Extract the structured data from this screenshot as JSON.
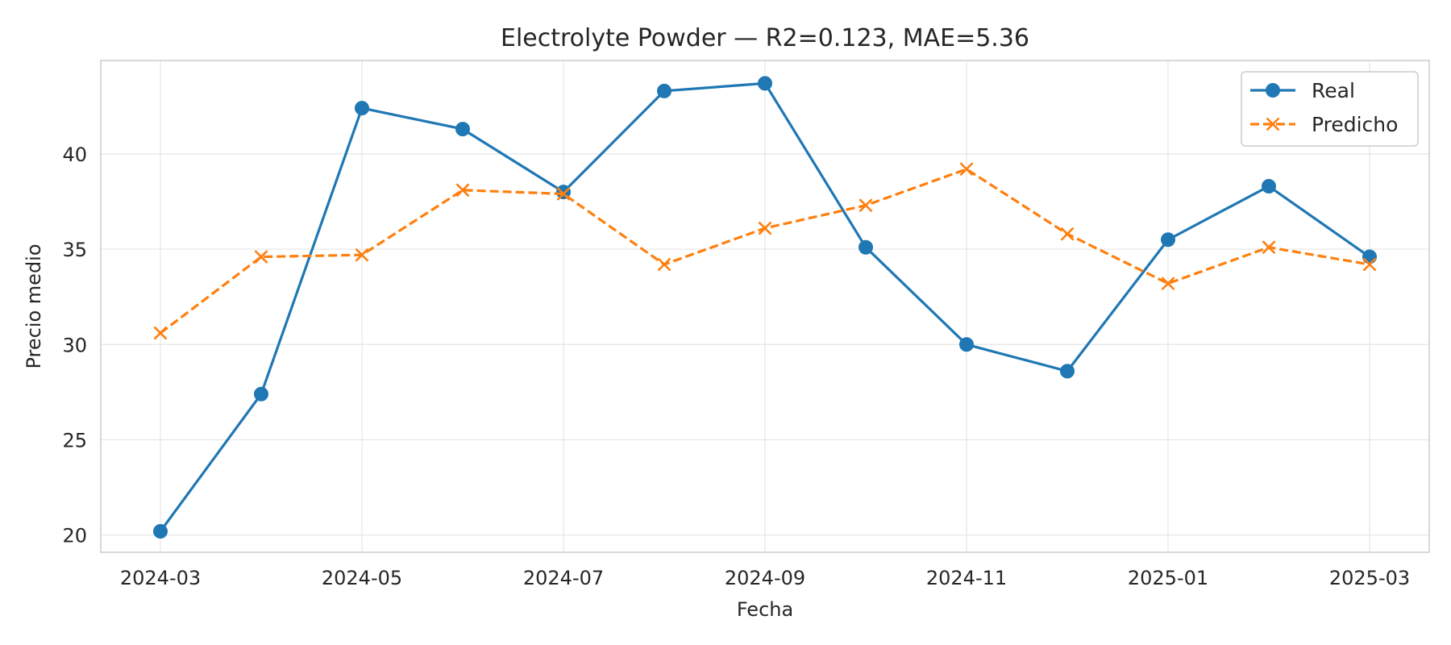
{
  "chart_data": {
    "type": "line",
    "title": "Electrolyte Powder — R2=0.123, MAE=5.36",
    "xlabel": "Fecha",
    "ylabel": "Precio medio",
    "x": [
      "2024-03",
      "2024-04",
      "2024-05",
      "2024-06",
      "2024-07",
      "2024-08",
      "2024-09",
      "2024-10",
      "2024-11",
      "2024-12",
      "2025-01",
      "2025-02",
      "2025-03"
    ],
    "x_ticks": [
      "2024-03",
      "2024-05",
      "2024-07",
      "2024-09",
      "2024-11",
      "2025-01",
      "2025-03"
    ],
    "y_ticks": [
      20,
      25,
      30,
      35,
      40
    ],
    "ylim": [
      19.1,
      44.9
    ],
    "grid": true,
    "legend_position": "top-right",
    "series": [
      {
        "name": "Real",
        "color": "#1f77b4",
        "line_style": "solid",
        "marker": "circle",
        "values": [
          20.2,
          27.4,
          42.4,
          41.3,
          38.0,
          43.3,
          43.7,
          35.1,
          30.0,
          28.6,
          35.5,
          38.3,
          34.6
        ]
      },
      {
        "name": "Predicho",
        "color": "#ff7f0e",
        "line_style": "dashed",
        "marker": "x",
        "values": [
          30.6,
          34.6,
          34.7,
          38.1,
          37.9,
          34.2,
          36.1,
          37.3,
          39.2,
          35.8,
          33.2,
          35.1,
          34.2
        ]
      }
    ]
  }
}
